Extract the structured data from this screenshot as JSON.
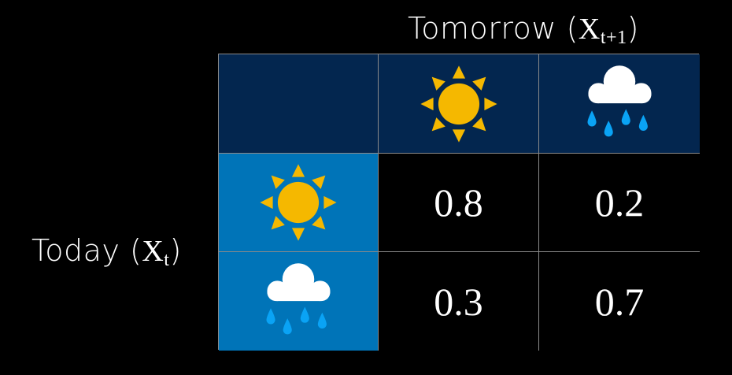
{
  "column_header": {
    "text": "Tomorrow (",
    "var": "X",
    "sub": "t+1",
    "close": ")"
  },
  "row_header": {
    "text": "Today (",
    "var": "X",
    "sub": "t",
    "close": ")"
  },
  "states": [
    {
      "name": "sunny",
      "icon": "sun-icon"
    },
    {
      "name": "rainy",
      "icon": "rain-cloud-icon"
    }
  ],
  "matrix": [
    [
      "0.8",
      "0.2"
    ],
    [
      "0.3",
      "0.7"
    ]
  ],
  "colors": {
    "header_bg": "#03264f",
    "row_header_bg": "#0074b8",
    "sun": "#f5b800",
    "cloud": "#ffffff",
    "rain": "#0aa3f5",
    "grid": "#8a8a8a"
  }
}
